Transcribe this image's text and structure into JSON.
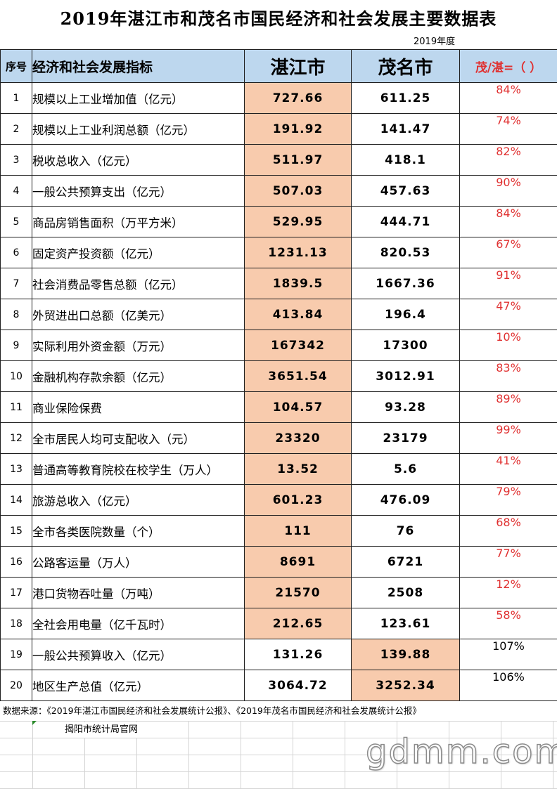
{
  "title": "2019年湛江市和茂名市国民经济和社会发展主要数据表",
  "year_label": "2019年度",
  "headers": {
    "seq": "序号",
    "indicator": "经济和社会发展指标",
    "city1": "湛江市",
    "city2": "茂名市",
    "ratio": "茂/湛=（  ）"
  },
  "colors": {
    "header_bg": "#bdd7ee",
    "highlight": "#f8cbad",
    "ratio_red": "#e03030"
  },
  "rows": [
    {
      "seq": "1",
      "indicator": "规模以上工业增加值（亿元）",
      "zhanjiang": "727.66",
      "maoming": "611.25",
      "ratio": "84%",
      "higher": "zhanjiang"
    },
    {
      "seq": "2",
      "indicator": "规模以上工业利润总额（亿元）",
      "zhanjiang": "191.92",
      "maoming": "141.47",
      "ratio": "74%",
      "higher": "zhanjiang"
    },
    {
      "seq": "3",
      "indicator": "税收总收入（亿元）",
      "zhanjiang": "511.97",
      "maoming": "418.1",
      "ratio": "82%",
      "higher": "zhanjiang"
    },
    {
      "seq": "4",
      "indicator": "一般公共预算支出（亿元）",
      "zhanjiang": "507.03",
      "maoming": "457.63",
      "ratio": "90%",
      "higher": "zhanjiang"
    },
    {
      "seq": "5",
      "indicator": "商品房销售面积（万平方米）",
      "zhanjiang": "529.95",
      "maoming": "444.71",
      "ratio": "84%",
      "higher": "zhanjiang"
    },
    {
      "seq": "6",
      "indicator": "固定资产投资额（亿元）",
      "zhanjiang": "1231.13",
      "maoming": "820.53",
      "ratio": "67%",
      "higher": "zhanjiang"
    },
    {
      "seq": "7",
      "indicator": "社会消费品零售总额（亿元）",
      "zhanjiang": "1839.5",
      "maoming": "1667.36",
      "ratio": "91%",
      "higher": "zhanjiang"
    },
    {
      "seq": "8",
      "indicator": "外贸进出口总额（亿美元）",
      "zhanjiang": "413.84",
      "maoming": "196.4",
      "ratio": "47%",
      "higher": "zhanjiang"
    },
    {
      "seq": "9",
      "indicator": "实际利用外资金额（万元）",
      "zhanjiang": "167342",
      "maoming": "17300",
      "ratio": "10%",
      "higher": "zhanjiang"
    },
    {
      "seq": "10",
      "indicator": "金融机构存款余额（亿元）",
      "zhanjiang": "3651.54",
      "maoming": "3012.91",
      "ratio": "83%",
      "higher": "zhanjiang"
    },
    {
      "seq": "11",
      "indicator": "商业保险保费",
      "zhanjiang": "104.57",
      "maoming": "93.28",
      "ratio": "89%",
      "higher": "zhanjiang"
    },
    {
      "seq": "12",
      "indicator": "全市居民人均可支配收入（元）",
      "zhanjiang": "23320",
      "maoming": "23179",
      "ratio": "99%",
      "higher": "zhanjiang"
    },
    {
      "seq": "13",
      "indicator": "普通高等教育院校在校学生（万人）",
      "zhanjiang": "13.52",
      "maoming": "5.6",
      "ratio": "41%",
      "higher": "zhanjiang"
    },
    {
      "seq": "14",
      "indicator": "旅游总收入（亿元）",
      "zhanjiang": "601.23",
      "maoming": "476.09",
      "ratio": "79%",
      "higher": "zhanjiang"
    },
    {
      "seq": "15",
      "indicator": "全市各类医院数量（个）",
      "zhanjiang": "111",
      "maoming": "76",
      "ratio": "68%",
      "higher": "zhanjiang"
    },
    {
      "seq": "16",
      "indicator": "公路客运量（万人）",
      "zhanjiang": "8691",
      "maoming": "6721",
      "ratio": "77%",
      "higher": "zhanjiang"
    },
    {
      "seq": "17",
      "indicator": "港口货物吞吐量（万吨）",
      "zhanjiang": "21570",
      "maoming": "2508",
      "ratio": "12%",
      "higher": "zhanjiang"
    },
    {
      "seq": "18",
      "indicator": "全社会用电量（亿千瓦时）",
      "zhanjiang": "212.65",
      "maoming": "123.61",
      "ratio": "58%",
      "higher": "zhanjiang"
    },
    {
      "seq": "19",
      "indicator": "一般公共预算收入（亿元）",
      "zhanjiang": "131.26",
      "maoming": "139.88",
      "ratio": "107%",
      "higher": "maoming"
    },
    {
      "seq": "20",
      "indicator": "地区生产总值（亿元）",
      "zhanjiang": "3064.72",
      "maoming": "3252.34",
      "ratio": "106%",
      "higher": "maoming"
    }
  ],
  "source_text": "数据来源：《2019年湛江市国民经济和社会发展统计公报》、《2019年茂名市国民经济和社会发展统计公报》",
  "publisher": "揭阳市统计局官网",
  "watermark": "gdmm.com"
}
